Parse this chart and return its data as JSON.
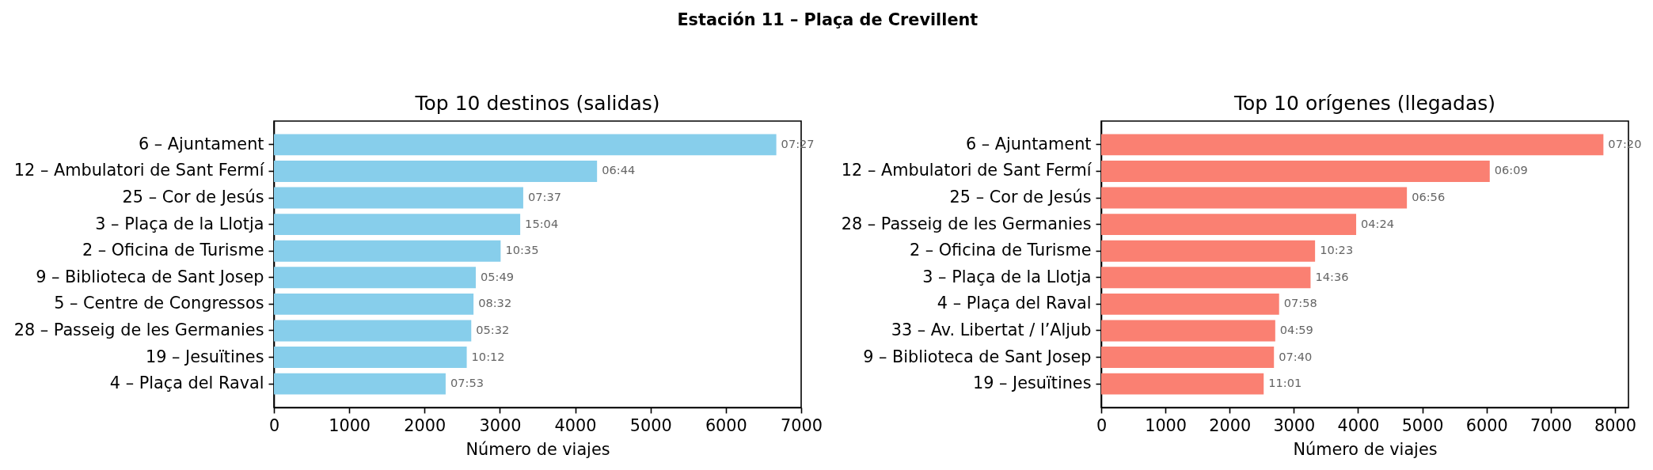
{
  "chart_data": [
    {
      "type": "other",
      "title": "Estación 11 – Plaça de Crevillent"
    },
    {
      "type": "bar",
      "orientation": "horizontal",
      "title": "Top 10 destinos (salidas)",
      "xlabel": "Número de viajes",
      "categories": [
        "6 – Ajuntament",
        "12 – Ambulatori de Sant Fermí",
        "25 – Cor de Jesús",
        "3 – Plaça de la Llotja",
        "2 – Oficina de Turisme",
        "9 – Biblioteca de Sant Josep",
        "5 – Centre de Congressos",
        "28 – Passeig de les Germanies",
        "19 – Jesuïtines",
        "4 – Plaça del Raval"
      ],
      "values": [
        6670,
        4290,
        3310,
        3270,
        3010,
        2680,
        2650,
        2620,
        2560,
        2280
      ],
      "color": "#87ceeb",
      "xlim": [
        0,
        7000
      ],
      "xticks": [
        0,
        1000,
        2000,
        3000,
        4000,
        5000,
        6000,
        7000
      ],
      "annotations": [
        {
          "text": "07:27",
          "x": 6670,
          "y": "6 – Ajuntament"
        },
        {
          "text": "06:44",
          "x": 4290,
          "y": "12 – Ambulatori de Sant Fermí"
        },
        {
          "text": "07:37",
          "x": 3310,
          "y": "25 – Cor de Jesús"
        },
        {
          "text": "15:04",
          "x": 3270,
          "y": "3 – Plaça de la Llotja"
        },
        {
          "text": "10:35",
          "x": 3010,
          "y": "2 – Oficina de Turisme"
        },
        {
          "text": "05:49",
          "x": 2680,
          "y": "9 – Biblioteca de Sant Josep"
        },
        {
          "text": "08:32",
          "x": 2650,
          "y": "5 – Centre de Congressos"
        },
        {
          "text": "05:32",
          "x": 2620,
          "y": "28 – Passeig de les Germanies"
        },
        {
          "text": "10:12",
          "x": 2560,
          "y": "19 – Jesuïtines"
        },
        {
          "text": "07:53",
          "x": 2280,
          "y": "4 – Plaça del Raval"
        }
      ]
    },
    {
      "type": "bar",
      "orientation": "horizontal",
      "title": "Top 10 orígenes (llegadas)",
      "xlabel": "Número de viajes",
      "categories": [
        "6 – Ajuntament",
        "12 – Ambulatori de Sant Fermí",
        "25 – Cor de Jesús",
        "28 – Passeig de les Germanies",
        "2 – Oficina de Turisme",
        "3 – Plaça de la Llotja",
        "4 – Plaça del Raval",
        "33 – Av. Libertat / l’Aljub",
        "9 – Biblioteca de Sant Josep",
        "19 – Jesuïtines"
      ],
      "values": [
        7820,
        6050,
        4760,
        3970,
        3330,
        3260,
        2770,
        2710,
        2690,
        2530
      ],
      "color": "#fa8072",
      "xlim": [
        0,
        8210
      ],
      "xticks": [
        0,
        1000,
        2000,
        3000,
        4000,
        5000,
        6000,
        7000,
        8000
      ],
      "annotations": [
        {
          "text": "07:20",
          "x": 7820,
          "y": "6 – Ajuntament"
        },
        {
          "text": "06:09",
          "x": 6050,
          "y": "12 – Ambulatori de Sant Fermí"
        },
        {
          "text": "06:56",
          "x": 4760,
          "y": "25 – Cor de Jesús"
        },
        {
          "text": "04:24",
          "x": 3970,
          "y": "28 – Passeig de les Germanies"
        },
        {
          "text": "10:23",
          "x": 3330,
          "y": "2 – Oficina de Turisme"
        },
        {
          "text": "14:36",
          "x": 3260,
          "y": "3 – Plaça de la Llotja"
        },
        {
          "text": "07:58",
          "x": 2770,
          "y": "4 – Plaça del Raval"
        },
        {
          "text": "04:59",
          "x": 2710,
          "y": "33 – Av. Libertat / l’Aljub"
        },
        {
          "text": "07:40",
          "x": 2690,
          "y": "9 – Biblioteca de Sant Josep"
        },
        {
          "text": "11:01",
          "x": 2530,
          "y": "19 – Jesuïtines"
        }
      ]
    }
  ]
}
